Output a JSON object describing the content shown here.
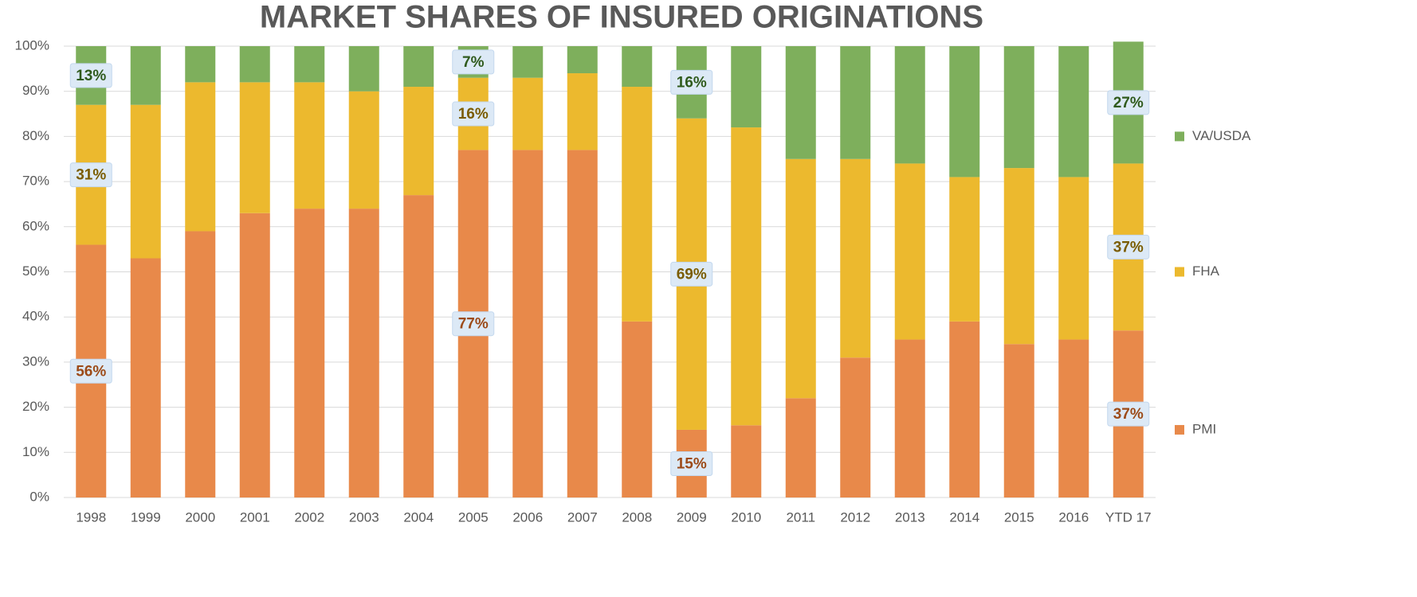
{
  "chart_data": {
    "type": "stacked_bar",
    "title": "MARKET SHARES OF INSURED ORIGINATIONS",
    "categories": [
      "1998",
      "1999",
      "2000",
      "2001",
      "2002",
      "2003",
      "2004",
      "2005",
      "2006",
      "2007",
      "2008",
      "2009",
      "2010",
      "2011",
      "2012",
      "2013",
      "2014",
      "2015",
      "2016",
      "YTD 17"
    ],
    "series": [
      {
        "name": "PMI",
        "color": "#e8894a",
        "values": [
          56,
          53,
          59,
          63,
          64,
          64,
          67,
          77,
          77,
          77,
          39,
          15,
          16,
          22,
          31,
          35,
          39,
          34,
          35,
          37
        ],
        "value_labels": [
          "56%",
          null,
          null,
          null,
          null,
          null,
          null,
          "77%",
          null,
          null,
          null,
          "15%",
          null,
          null,
          null,
          null,
          null,
          null,
          null,
          "37%"
        ]
      },
      {
        "name": "FHA",
        "color": "#ecb92e",
        "values": [
          31,
          34,
          33,
          29,
          28,
          26,
          24,
          16,
          16,
          17,
          52,
          69,
          66,
          53,
          44,
          39,
          32,
          39,
          36,
          37
        ],
        "value_labels": [
          "31%",
          null,
          null,
          null,
          null,
          null,
          null,
          "16%",
          null,
          null,
          null,
          "69%",
          null,
          null,
          null,
          null,
          null,
          null,
          null,
          "37%"
        ]
      },
      {
        "name": "VA/USDA",
        "color": "#7eaf5c",
        "values": [
          13,
          13,
          8,
          8,
          8,
          10,
          9,
          7,
          7,
          6,
          9,
          16,
          18,
          25,
          25,
          26,
          29,
          27,
          29,
          27
        ],
        "value_labels": [
          "13%",
          null,
          null,
          null,
          null,
          null,
          null,
          "7%",
          null,
          null,
          null,
          "16%",
          null,
          null,
          null,
          null,
          null,
          null,
          null,
          "27%"
        ]
      }
    ],
    "ylim": [
      0,
      100
    ],
    "yticks": [
      {
        "value": 0,
        "label": "0%"
      },
      {
        "value": 10,
        "label": "10%"
      },
      {
        "value": 20,
        "label": "20%"
      },
      {
        "value": 30,
        "label": "30%"
      },
      {
        "value": 40,
        "label": "40%"
      },
      {
        "value": 50,
        "label": "50%"
      },
      {
        "value": 60,
        "label": "60%"
      },
      {
        "value": 70,
        "label": "70%"
      },
      {
        "value": 80,
        "label": "80%"
      },
      {
        "value": 90,
        "label": "90%"
      },
      {
        "value": 100,
        "label": "100%"
      }
    ],
    "grid": true,
    "legend": "right"
  }
}
